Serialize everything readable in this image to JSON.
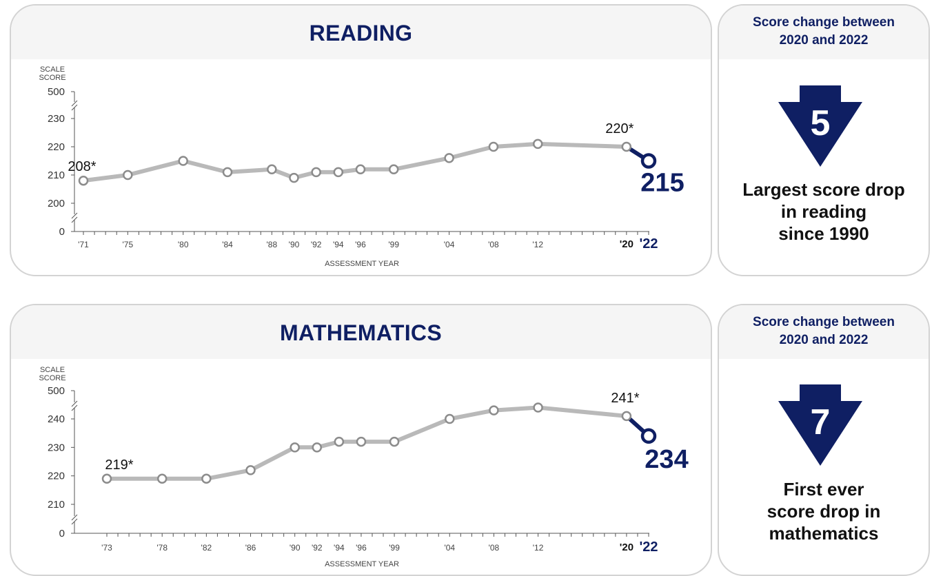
{
  "colors": {
    "navy": "#0f1f63",
    "line_gray": "#b9b9b9",
    "header_bg": "#f5f5f5",
    "border": "#d3d3d3"
  },
  "icons": [
    "down-arrow-icon",
    "axis-break-icon"
  ],
  "chart_data": [
    {
      "type": "line",
      "title": "READING",
      "ylabel": "SCALE SCORE",
      "xlabel": "ASSESSMENT YEAR",
      "y_ticks": [
        0,
        200,
        210,
        220,
        230,
        500
      ],
      "ylim": [
        200,
        230
      ],
      "axis_break": true,
      "x_range": [
        1971,
        2022
      ],
      "x_tick_labels": [
        {
          "year": 1971,
          "label": "'71"
        },
        {
          "year": 1975,
          "label": "'75"
        },
        {
          "year": 1980,
          "label": "'80"
        },
        {
          "year": 1984,
          "label": "'84"
        },
        {
          "year": 1988,
          "label": "'88"
        },
        {
          "year": 1990,
          "label": "'90"
        },
        {
          "year": 1992,
          "label": "'92"
        },
        {
          "year": 1994,
          "label": "'94"
        },
        {
          "year": 1996,
          "label": "'96"
        },
        {
          "year": 1999,
          "label": "'99"
        },
        {
          "year": 2004,
          "label": "'04"
        },
        {
          "year": 2008,
          "label": "'08"
        },
        {
          "year": 2012,
          "label": "'12"
        },
        {
          "year": 2020,
          "label": "'20",
          "bold": true
        },
        {
          "year": 2022,
          "label": "'22",
          "bold": true,
          "highlight": true
        }
      ],
      "x": [
        1971,
        1975,
        1980,
        1984,
        1988,
        1990,
        1992,
        1994,
        1996,
        1999,
        2004,
        2008,
        2012,
        2020
      ],
      "y": [
        208,
        210,
        215,
        211,
        212,
        209,
        211,
        211,
        212,
        212,
        216,
        220,
        221,
        220
      ],
      "highlight": {
        "x_from": 2020,
        "y_from": 220,
        "x": 2022,
        "y": 215
      },
      "annotations": [
        {
          "year": 1971,
          "value": 208,
          "text": "208*"
        },
        {
          "year": 2020,
          "value": 220,
          "text": "220*"
        },
        {
          "year": 2022,
          "value": 215,
          "text": "215",
          "highlight": true
        }
      ]
    },
    {
      "type": "line",
      "title": "MATHEMATICS",
      "ylabel": "SCALE SCORE",
      "xlabel": "ASSESSMENT YEAR",
      "y_ticks": [
        0,
        210,
        220,
        230,
        240,
        500
      ],
      "ylim": [
        210,
        240
      ],
      "axis_break": true,
      "x_range": [
        1973,
        2022
      ],
      "x_tick_labels": [
        {
          "year": 1973,
          "label": "'73"
        },
        {
          "year": 1978,
          "label": "'78"
        },
        {
          "year": 1982,
          "label": "'82"
        },
        {
          "year": 1986,
          "label": "'86"
        },
        {
          "year": 1990,
          "label": "'90"
        },
        {
          "year": 1992,
          "label": "'92"
        },
        {
          "year": 1994,
          "label": "'94"
        },
        {
          "year": 1996,
          "label": "'96"
        },
        {
          "year": 1999,
          "label": "'99"
        },
        {
          "year": 2004,
          "label": "'04"
        },
        {
          "year": 2008,
          "label": "'08"
        },
        {
          "year": 2012,
          "label": "'12"
        },
        {
          "year": 2020,
          "label": "'20",
          "bold": true
        },
        {
          "year": 2022,
          "label": "'22",
          "bold": true,
          "highlight": true
        }
      ],
      "x": [
        1973,
        1978,
        1982,
        1986,
        1990,
        1992,
        1994,
        1996,
        1999,
        2004,
        2008,
        2012,
        2020
      ],
      "y": [
        219,
        219,
        219,
        222,
        230,
        230,
        232,
        232,
        232,
        240,
        243,
        244,
        241
      ],
      "highlight": {
        "x_from": 2020,
        "y_from": 241,
        "x": 2022,
        "y": 234
      },
      "annotations": [
        {
          "year": 1973,
          "value": 219,
          "text": "219*"
        },
        {
          "year": 2020,
          "value": 241,
          "text": "241*"
        },
        {
          "year": 2022,
          "value": 234,
          "text": "234",
          "highlight": true
        }
      ]
    }
  ],
  "side_panels": [
    {
      "heading": "Score change between\n2020 and 2022",
      "change_value": "5",
      "description": "Largest score drop\nin reading\nsince 1990"
    },
    {
      "heading": "Score change between\n2020 and 2022",
      "change_value": "7",
      "description": "First ever\nscore drop in\nmathematics"
    }
  ]
}
